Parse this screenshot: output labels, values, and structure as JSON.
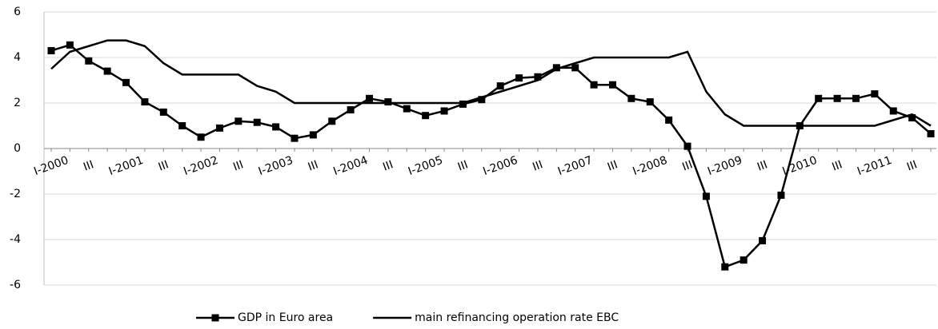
{
  "chart_data": {
    "type": "line",
    "categories": [
      "I-2000",
      null,
      "III",
      null,
      "I-2001",
      null,
      "III",
      null,
      "I-2002",
      null,
      "III",
      null,
      "I-2003",
      null,
      "III",
      null,
      "I-2004",
      null,
      "III",
      null,
      "I-2005",
      null,
      "III",
      null,
      "I-2006",
      null,
      "III",
      null,
      "I-2007",
      null,
      "III",
      null,
      "I-2008",
      null,
      "III",
      null,
      "I-2009",
      null,
      "III",
      null,
      "I-2010",
      null,
      "III",
      null,
      "I-2011",
      null,
      "III",
      null
    ],
    "series": [
      {
        "name": "GDP in Euro area",
        "color": "#000000",
        "marker": "square",
        "values": [
          4.3,
          4.55,
          3.85,
          3.4,
          2.9,
          2.05,
          1.6,
          1.0,
          0.5,
          0.9,
          1.2,
          1.15,
          0.95,
          0.45,
          0.6,
          1.2,
          1.7,
          2.2,
          2.05,
          1.75,
          1.45,
          1.65,
          1.95,
          2.15,
          2.75,
          3.1,
          3.15,
          3.55,
          3.55,
          2.8,
          2.8,
          2.2,
          2.05,
          1.25,
          0.1,
          -2.1,
          -5.2,
          -4.9,
          -4.05,
          -2.05,
          1.0,
          2.2,
          2.2,
          2.2,
          2.4,
          1.65,
          1.35,
          0.65
        ]
      },
      {
        "name": "main refinancing operation rate EBC",
        "color": "#000000",
        "values": [
          3.5,
          4.25,
          4.5,
          4.75,
          4.75,
          4.5,
          3.75,
          3.25,
          3.25,
          3.25,
          3.25,
          2.75,
          2.5,
          2.0,
          2.0,
          2.0,
          2.0,
          2.0,
          2.0,
          2.0,
          2.0,
          2.0,
          2.0,
          2.25,
          2.5,
          2.75,
          3.0,
          3.5,
          3.75,
          4.0,
          4.0,
          4.0,
          4.0,
          4.0,
          4.25,
          2.5,
          1.5,
          1.0,
          1.0,
          1.0,
          1.0,
          1.0,
          1.0,
          1.0,
          1.0,
          1.25,
          1.5,
          1.0
        ]
      }
    ],
    "ylim": [
      -6,
      6
    ],
    "yticks": [
      -6,
      -4,
      -2,
      0,
      2,
      4,
      6
    ],
    "grid": true,
    "legend": "bottom"
  }
}
